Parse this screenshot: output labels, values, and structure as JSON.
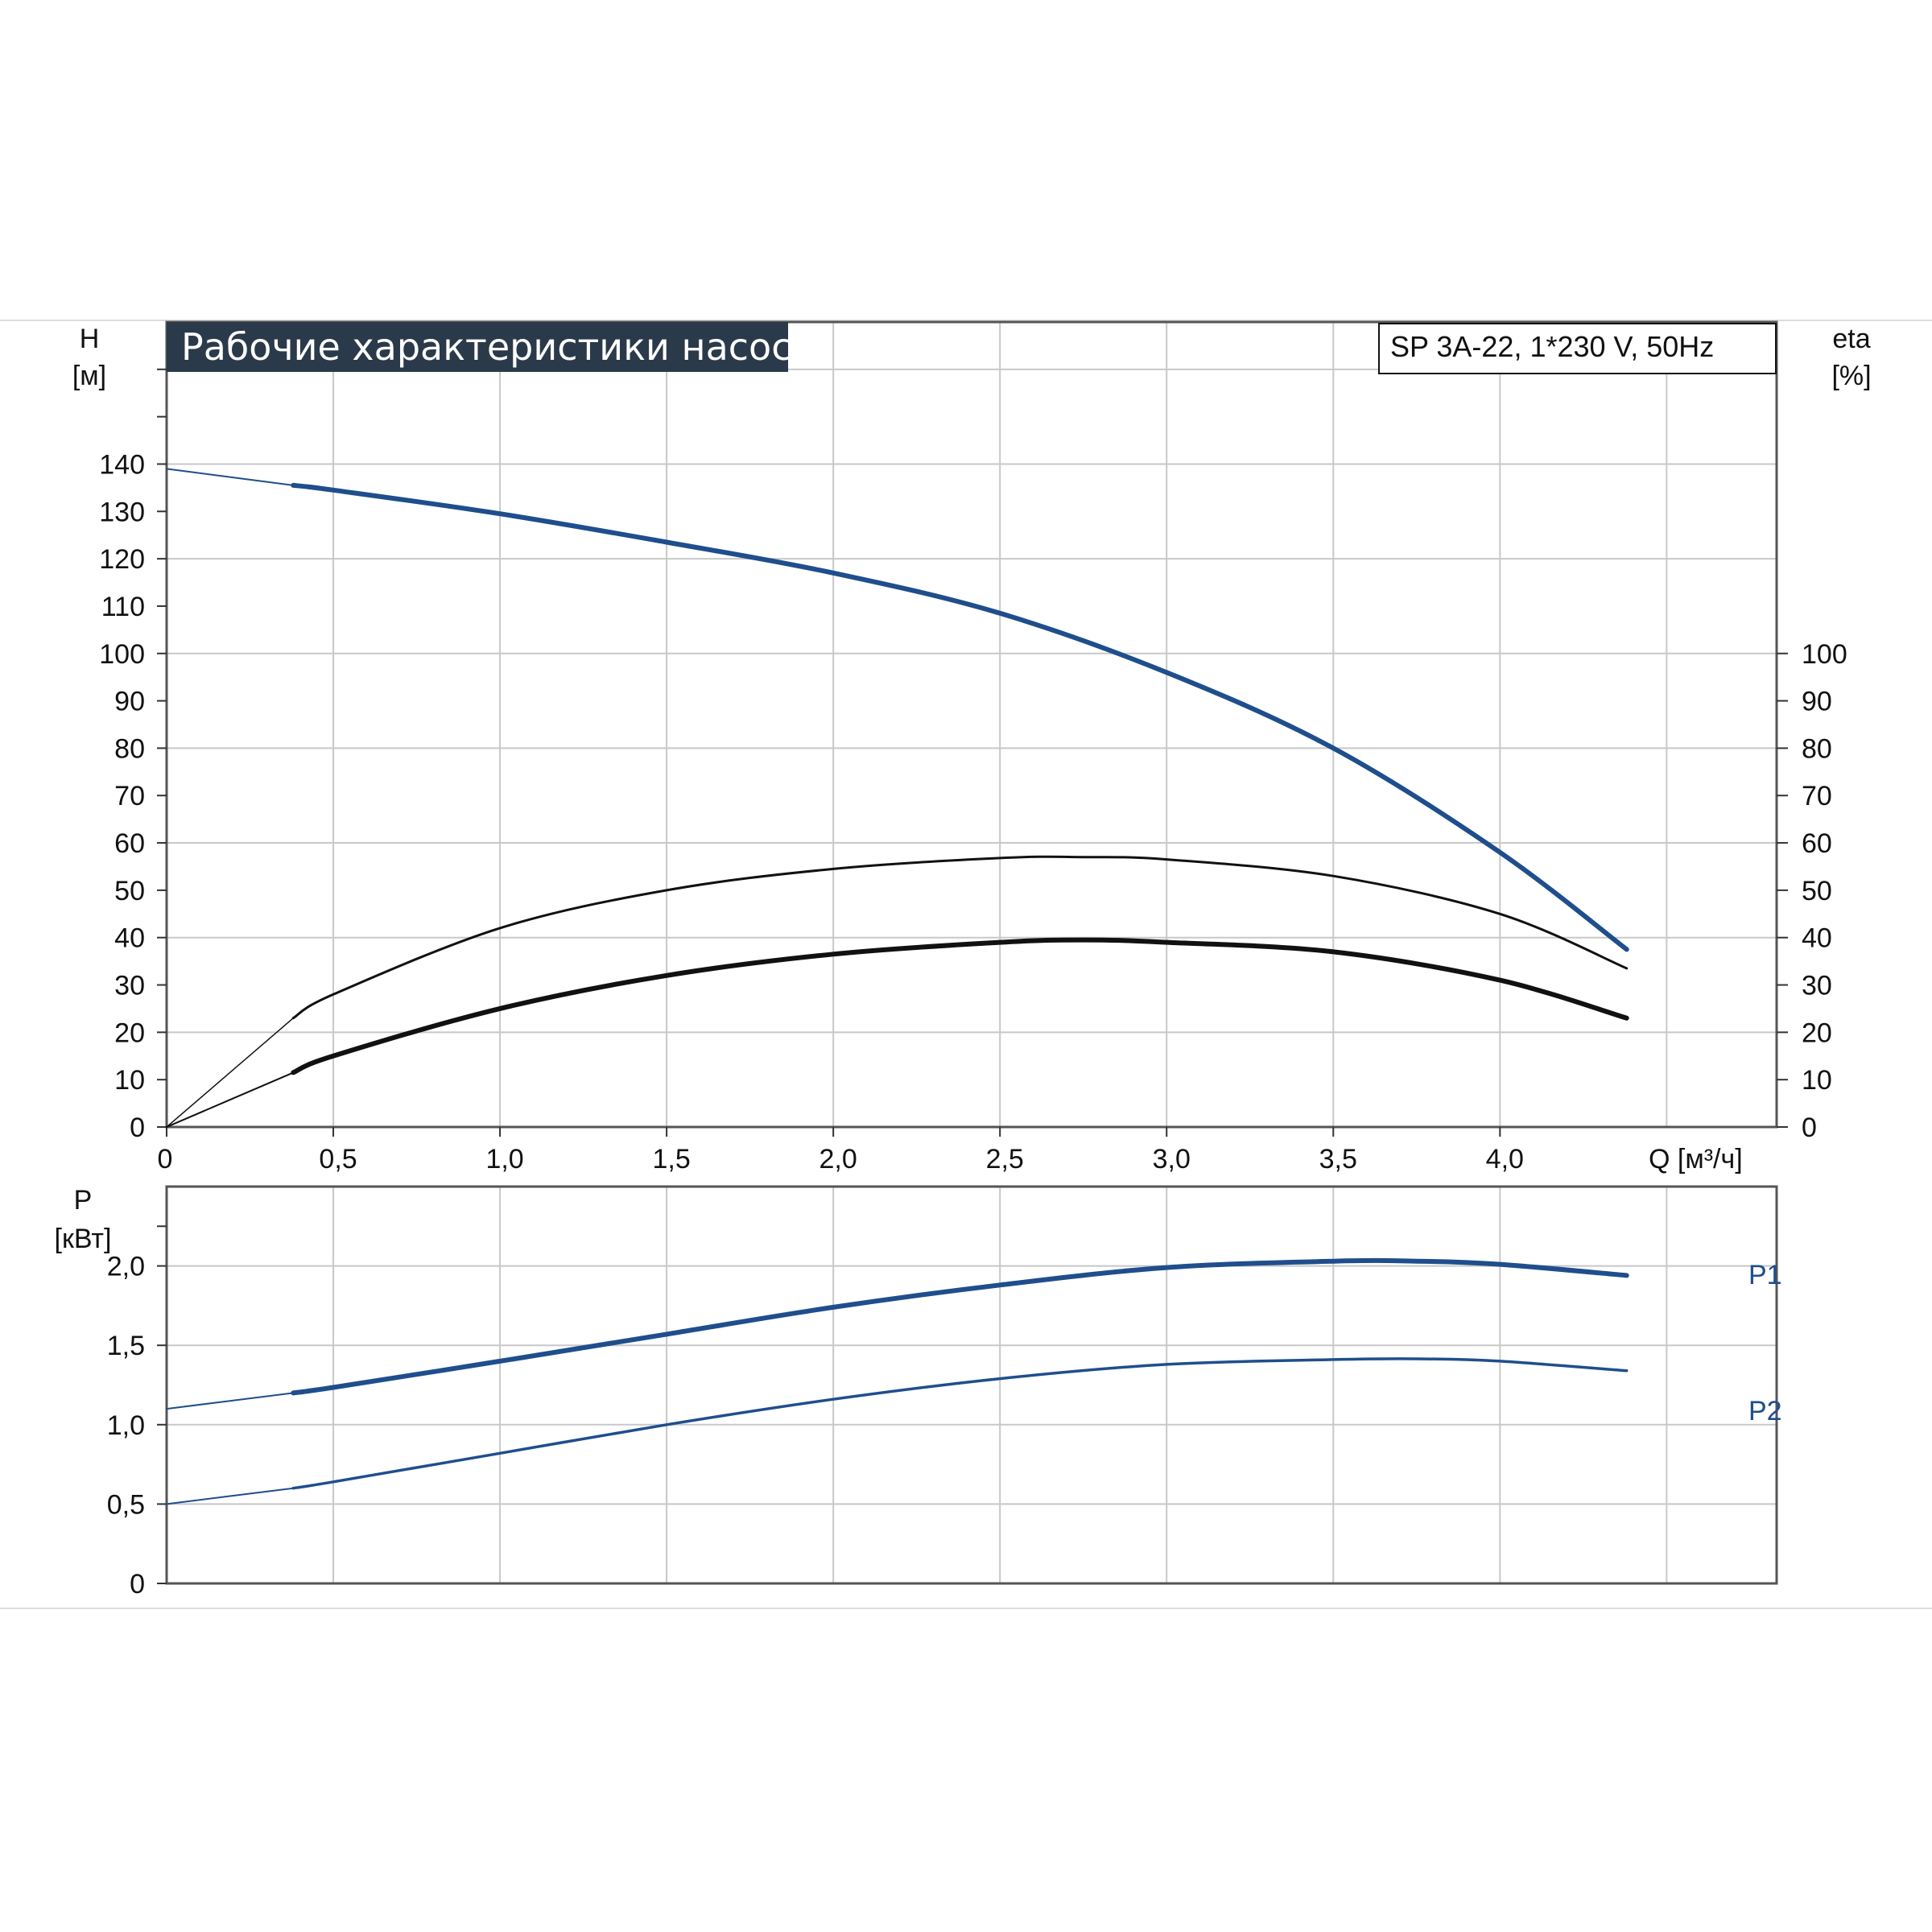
{
  "title": "Рабочие характеристики насоса",
  "model": "SP 3A-22, 1*230 V, 50Hz",
  "colors": {
    "blue": "#1f4e8c",
    "black": "#111111",
    "grid": "#c8c8c8",
    "title_bg": "#2b3a4a"
  },
  "chart_data": [
    {
      "type": "line",
      "name": "head-efficiency",
      "y_axis_left": {
        "label": "H",
        "unit": "[м]",
        "ticks": [
          "0",
          "10",
          "20",
          "30",
          "40",
          "50",
          "60",
          "70",
          "80",
          "90",
          "100",
          "110",
          "120",
          "130",
          "140"
        ]
      },
      "y_axis_right": {
        "label": "eta",
        "unit": "[%]",
        "ticks": [
          "0",
          "10",
          "20",
          "30",
          "40",
          "50",
          "60",
          "70",
          "80",
          "90",
          "100"
        ]
      },
      "x_axis": {
        "label": "Q [м³/ч]",
        "ticks": [
          "0",
          "0,5",
          "1,0",
          "1,5",
          "2,0",
          "2,5",
          "3,0",
          "3,5",
          "4,0"
        ]
      },
      "xlim": [
        0,
        4.83
      ],
      "ylim": [
        0,
        170
      ],
      "series": [
        {
          "key": "H",
          "color": "#1f4e8c",
          "x": [
            0,
            0.38,
            0.5,
            1.0,
            1.5,
            2.0,
            2.5,
            3.0,
            3.5,
            4.0,
            4.38
          ],
          "y": [
            139,
            135.5,
            134.5,
            129.5,
            123.5,
            117,
            108.5,
            96,
            80,
            58,
            37.5
          ]
        },
        {
          "key": "eta_pump",
          "color": "#111111",
          "x": [
            0,
            0.38,
            0.5,
            1.0,
            1.5,
            2.0,
            2.5,
            2.75,
            3.0,
            3.5,
            4.0,
            4.38
          ],
          "y": [
            0,
            23,
            28,
            42,
            50,
            54.5,
            56.8,
            57,
            56.5,
            53,
            45,
            33.5
          ]
        },
        {
          "key": "eta_total",
          "color": "#111111",
          "x": [
            0,
            0.38,
            0.5,
            1.0,
            1.5,
            2.0,
            2.5,
            2.75,
            3.0,
            3.5,
            4.0,
            4.38
          ],
          "y": [
            0,
            11.5,
            15,
            25,
            32,
            36.5,
            39,
            39.5,
            39,
            37,
            31,
            23
          ]
        }
      ]
    },
    {
      "type": "line",
      "name": "power",
      "y_axis_left": {
        "label": "P",
        "unit": "[кВт]",
        "ticks": [
          "0",
          "0,5",
          "1,0",
          "1,5",
          "2,0"
        ]
      },
      "x_axis": {
        "ticks": []
      },
      "xlim": [
        0,
        4.83
      ],
      "ylim": [
        0,
        2.5
      ],
      "series": [
        {
          "name": "P1",
          "color": "#1f4e8c",
          "x": [
            0,
            0.38,
            0.5,
            1.0,
            1.5,
            2.0,
            2.5,
            3.0,
            3.5,
            3.75,
            4.0,
            4.38
          ],
          "y": [
            1.1,
            1.2,
            1.235,
            1.4,
            1.57,
            1.74,
            1.88,
            1.99,
            2.03,
            2.03,
            2.01,
            1.94
          ]
        },
        {
          "name": "P2",
          "color": "#1f4e8c",
          "x": [
            0,
            0.38,
            0.5,
            1.0,
            1.5,
            2.0,
            2.5,
            3.0,
            3.5,
            3.75,
            4.0,
            4.38
          ],
          "y": [
            0.5,
            0.6,
            0.64,
            0.82,
            1.0,
            1.16,
            1.29,
            1.38,
            1.41,
            1.415,
            1.4,
            1.34
          ]
        }
      ]
    }
  ]
}
